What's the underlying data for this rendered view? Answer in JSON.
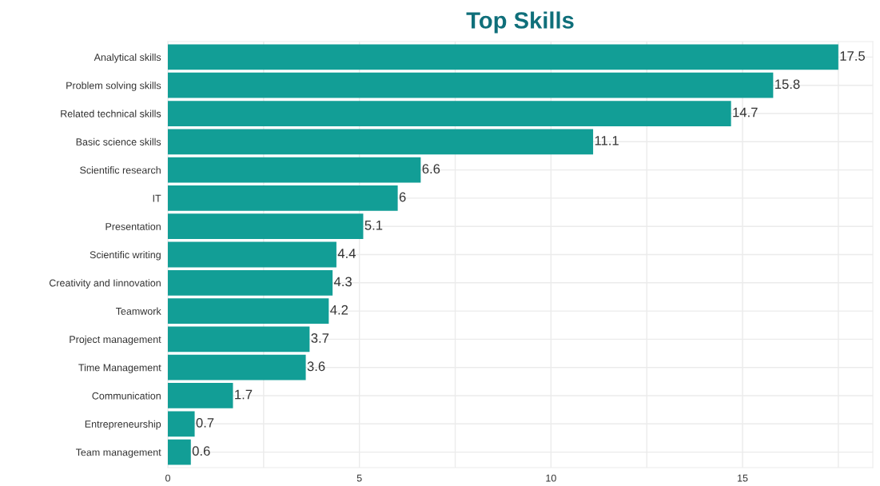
{
  "chart_data": {
    "type": "bar",
    "orientation": "horizontal",
    "title": "Top Skills",
    "categories": [
      "Analytical skills",
      "Problem solving skills",
      "Related technical skills",
      "Basic science skills",
      "Scientific research",
      "IT",
      "Presentation",
      "Scientific writing",
      "Creativity and Iinnovation",
      "Teamwork",
      "Project management",
      "Time Management",
      "Communication",
      "Entrepreneurship",
      "Team management"
    ],
    "values": [
      17.5,
      15.8,
      14.7,
      11.1,
      6.6,
      6,
      5.1,
      4.4,
      4.3,
      4.2,
      3.7,
      3.6,
      1.7,
      0.7,
      0.6
    ],
    "color": "#129e96",
    "data_labels": true,
    "grid": true,
    "xlim": [
      0,
      18.4
    ],
    "xticks": [
      0,
      {
        "value": 2.5,
        "label": null
      },
      5,
      {
        "value": 7.5,
        "label": null
      },
      10,
      {
        "value": 12.5,
        "label": null
      },
      15,
      {
        "value": 17.5,
        "label": null
      }
    ]
  }
}
